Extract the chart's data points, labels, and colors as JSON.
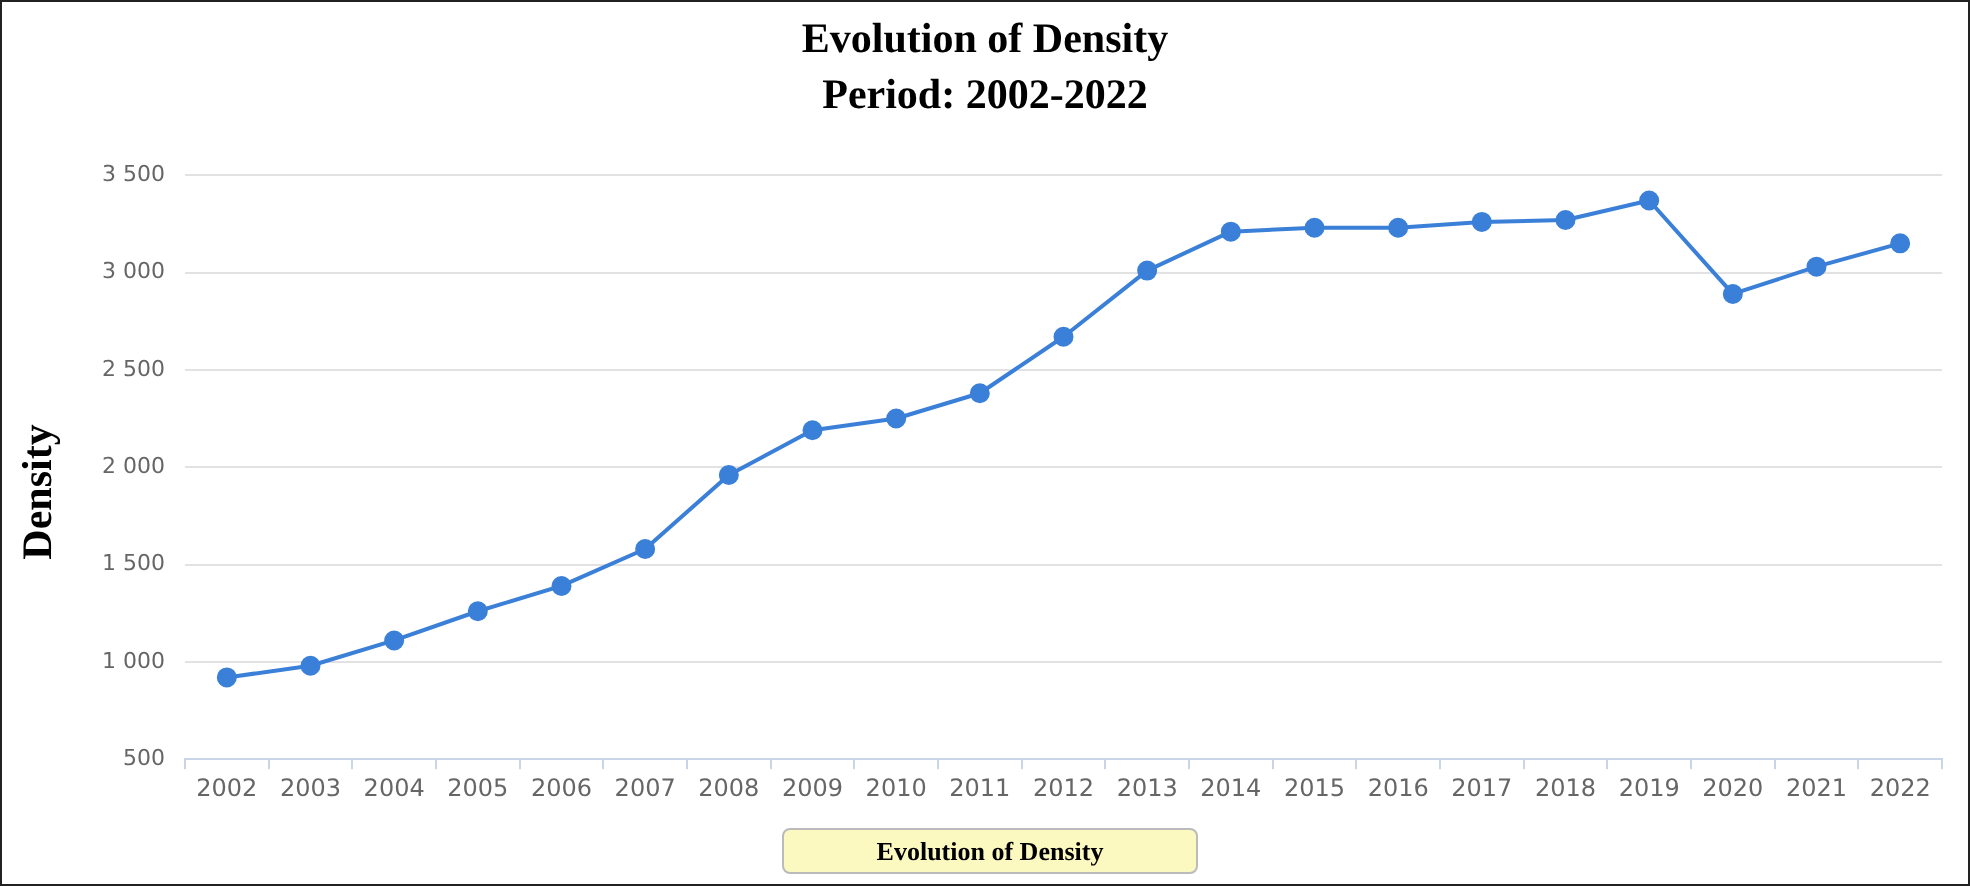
{
  "chart_data": {
    "type": "line",
    "title": "Evolution of Density",
    "subtitle": "Period: 2002-2022",
    "ylabel": "Density",
    "categories": [
      "2002",
      "2003",
      "2004",
      "2005",
      "2006",
      "2007",
      "2008",
      "2009",
      "2010",
      "2011",
      "2012",
      "2013",
      "2014",
      "2015",
      "2016",
      "2017",
      "2018",
      "2019",
      "2020",
      "2021",
      "2022"
    ],
    "series": [
      {
        "name": "Evolution of Density",
        "color": "#3a7fd8",
        "values": [
          920,
          980,
          1110,
          1260,
          1390,
          1580,
          1960,
          2190,
          2250,
          2380,
          2670,
          3010,
          3210,
          3230,
          3230,
          3260,
          3270,
          3370,
          2890,
          3030,
          3150
        ]
      }
    ],
    "ylim": [
      500,
      3500
    ],
    "yticks": [
      {
        "value": 500,
        "label": "500"
      },
      {
        "value": 1000,
        "label": "1 000"
      },
      {
        "value": 1500,
        "label": "1 500"
      },
      {
        "value": 2000,
        "label": "2 000"
      },
      {
        "value": 2500,
        "label": "2 500"
      },
      {
        "value": 3000,
        "label": "3 000"
      },
      {
        "value": 3500,
        "label": "3 500"
      }
    ],
    "grid": "y",
    "legend": "bottom",
    "marker": "circle",
    "line_style": "solid"
  }
}
